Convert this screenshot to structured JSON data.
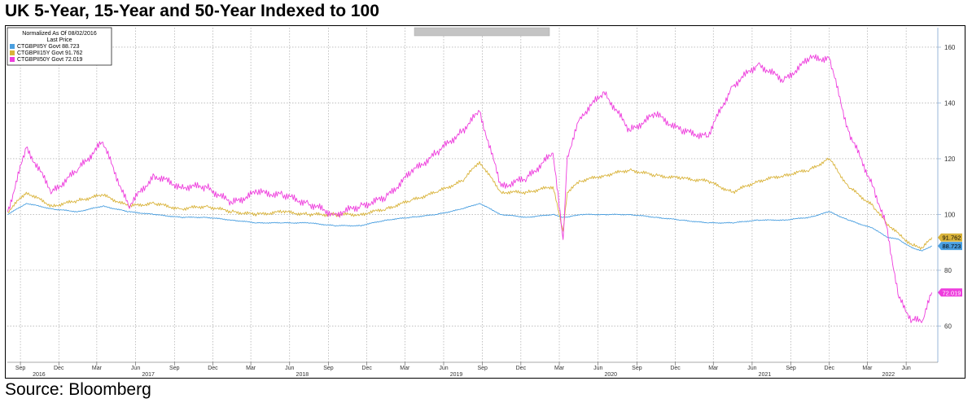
{
  "title": "UK 5-Year, 15-Year and 50-Year Indexed to 100",
  "source": "Source: Bloomberg",
  "chart_data": {
    "type": "line",
    "legend": {
      "header1": "Normalized As Of 08/02/2016",
      "header2": "Last Price",
      "placement": "top-left"
    },
    "ylim": [
      47,
      167
    ],
    "yticks": [
      60,
      80,
      100,
      120,
      140,
      160
    ],
    "grid": true,
    "xlim": [
      "2016-08-01",
      "2022-08-15"
    ],
    "month_ticks": [
      {
        "date": "2016-09-01",
        "label": "Sep"
      },
      {
        "date": "2016-12-01",
        "label": "Dec"
      },
      {
        "date": "2017-03-01",
        "label": "Mar"
      },
      {
        "date": "2017-06-01",
        "label": "Jun"
      },
      {
        "date": "2017-09-01",
        "label": "Sep"
      },
      {
        "date": "2017-12-01",
        "label": "Dec"
      },
      {
        "date": "2018-03-01",
        "label": "Mar"
      },
      {
        "date": "2018-06-01",
        "label": "Jun"
      },
      {
        "date": "2018-09-01",
        "label": "Sep"
      },
      {
        "date": "2018-12-01",
        "label": "Dec"
      },
      {
        "date": "2019-03-01",
        "label": "Mar"
      },
      {
        "date": "2019-06-01",
        "label": "Jun"
      },
      {
        "date": "2019-09-01",
        "label": "Sep"
      },
      {
        "date": "2019-12-01",
        "label": "Dec"
      },
      {
        "date": "2020-03-01",
        "label": "Mar"
      },
      {
        "date": "2020-06-01",
        "label": "Jun"
      },
      {
        "date": "2020-09-01",
        "label": "Sep"
      },
      {
        "date": "2020-12-01",
        "label": "Dec"
      },
      {
        "date": "2021-03-01",
        "label": "Mar"
      },
      {
        "date": "2021-06-01",
        "label": "Jun"
      },
      {
        "date": "2021-09-01",
        "label": "Sep"
      },
      {
        "date": "2021-12-01",
        "label": "Dec"
      },
      {
        "date": "2022-03-01",
        "label": "Mar"
      },
      {
        "date": "2022-06-01",
        "label": "Jun"
      }
    ],
    "year_ticks": [
      {
        "date": "2016-10-15",
        "label": "2016"
      },
      {
        "date": "2017-07-01",
        "label": "2017"
      },
      {
        "date": "2018-07-01",
        "label": "2018"
      },
      {
        "date": "2019-07-01",
        "label": "2019"
      },
      {
        "date": "2020-07-01",
        "label": "2020"
      },
      {
        "date": "2021-07-01",
        "label": "2021"
      },
      {
        "date": "2022-04-20",
        "label": "2022"
      }
    ],
    "x": [
      "2016-08-02",
      "2016-09-15",
      "2016-11-15",
      "2017-01-15",
      "2017-03-15",
      "2017-05-15",
      "2017-07-15",
      "2017-09-15",
      "2017-11-15",
      "2018-01-15",
      "2018-03-15",
      "2018-05-15",
      "2018-07-15",
      "2018-09-15",
      "2018-11-15",
      "2019-01-15",
      "2019-03-15",
      "2019-05-15",
      "2019-07-15",
      "2019-08-25",
      "2019-10-15",
      "2019-12-15",
      "2020-02-15",
      "2020-03-10",
      "2020-03-20",
      "2020-04-20",
      "2020-06-15",
      "2020-08-15",
      "2020-10-15",
      "2020-12-15",
      "2021-02-15",
      "2021-04-15",
      "2021-06-15",
      "2021-08-15",
      "2021-10-15",
      "2021-12-01",
      "2022-01-15",
      "2022-03-15",
      "2022-04-15",
      "2022-05-15",
      "2022-06-15",
      "2022-07-10",
      "2022-08-01"
    ],
    "series": [
      {
        "name": "CTGBPII5Y Govt",
        "last": "88.723",
        "color": "#4a9fe0",
        "values": [
          100,
          104,
          102,
          101,
          103,
          101,
          100,
          99,
          99,
          98,
          97,
          97,
          97,
          96,
          96,
          98,
          99,
          100,
          102,
          104,
          100,
          99,
          100,
          99,
          99,
          100,
          100,
          100,
          99,
          98,
          97,
          97,
          98,
          98,
          99,
          101,
          98,
          95,
          92,
          91,
          88,
          87,
          88.723
        ]
      },
      {
        "name": "CTGBPII15Y Govt",
        "last": "91.762",
        "color": "#d9b33a",
        "values": [
          101,
          108,
          103,
          105,
          107,
          103,
          104,
          102,
          103,
          101,
          100,
          101,
          100,
          100,
          100,
          102,
          105,
          108,
          112,
          119,
          108,
          108,
          110,
          94,
          108,
          112,
          114,
          116,
          114,
          113,
          112,
          108,
          112,
          114,
          116,
          120,
          110,
          103,
          97,
          93,
          89,
          88,
          91.762
        ]
      },
      {
        "name": "CTGBPII50Y Govt",
        "last": "72.019",
        "color": "#ee3ddd",
        "values": [
          101,
          124,
          108,
          116,
          126,
          103,
          114,
          110,
          110,
          104,
          108,
          107,
          104,
          100,
          103,
          106,
          115,
          122,
          130,
          137,
          110,
          113,
          122,
          91,
          121,
          135,
          144,
          130,
          136,
          130,
          128,
          146,
          154,
          148,
          156,
          156,
          130,
          110,
          96,
          70,
          62,
          62,
          72.019
        ]
      }
    ]
  }
}
